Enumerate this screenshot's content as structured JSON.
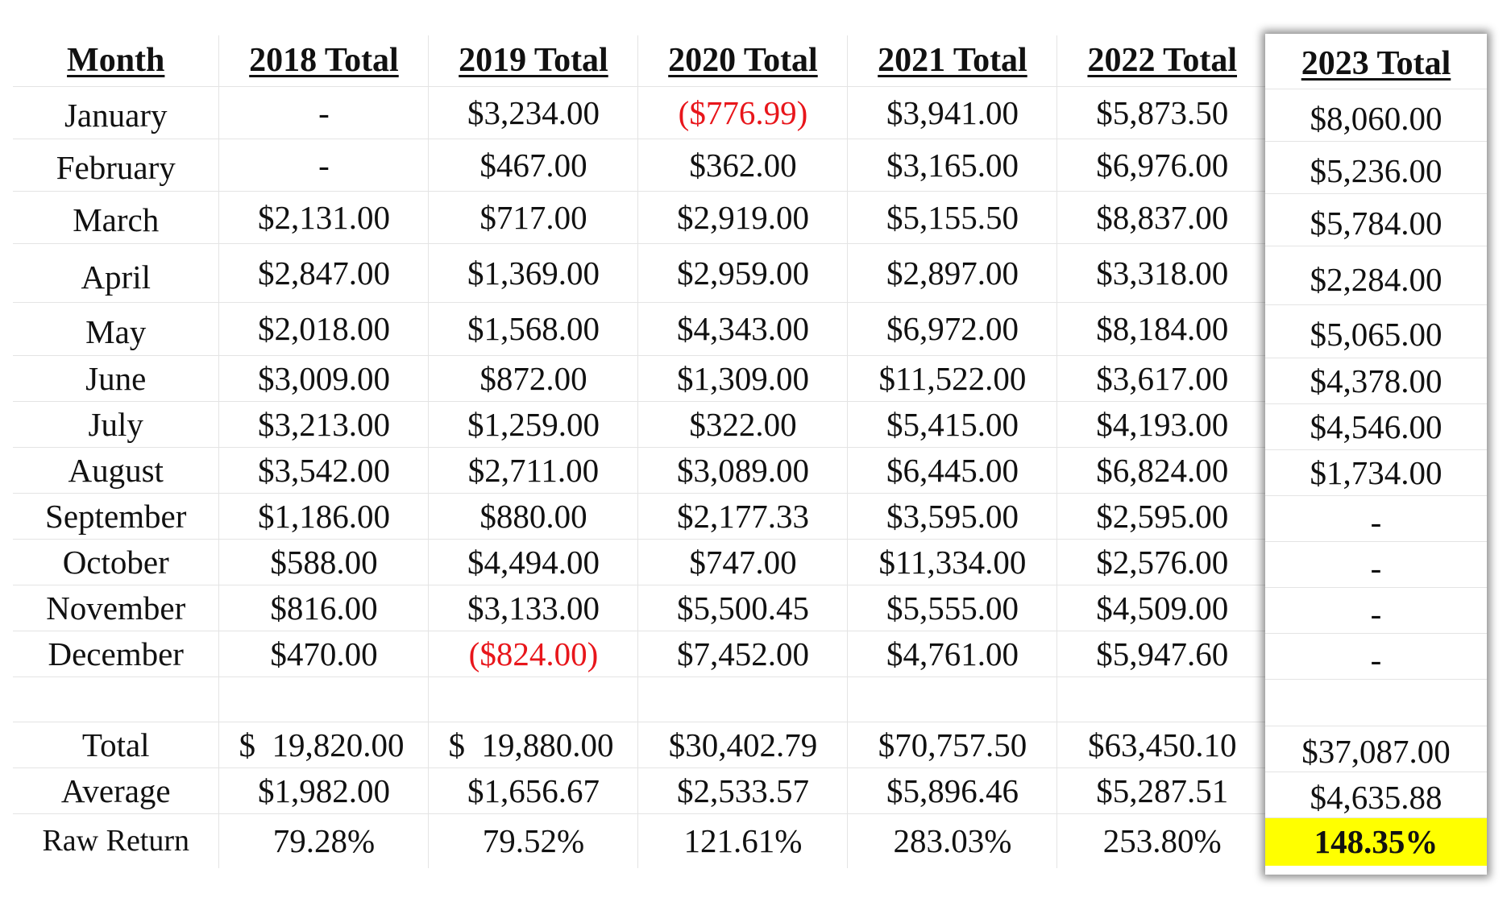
{
  "headers": {
    "month": "Month",
    "years": [
      "2018 Total",
      "2019 Total",
      "2020 Total",
      "2021 Total",
      "2022 Total"
    ],
    "highlight_year": "2023 Total"
  },
  "months": [
    {
      "name": "January",
      "values": [
        "-",
        "$3,234.00",
        "($776.99)",
        "$3,941.00",
        "$5,873.50"
      ],
      "y2023": "$8,060.00"
    },
    {
      "name": "February",
      "values": [
        "-",
        "$467.00",
        "$362.00",
        "$3,165.00",
        "$6,976.00"
      ],
      "y2023": "$5,236.00"
    },
    {
      "name": "March",
      "values": [
        "$2,131.00",
        "$717.00",
        "$2,919.00",
        "$5,155.50",
        "$8,837.00"
      ],
      "y2023": "$5,784.00"
    },
    {
      "name": "April",
      "values": [
        "$2,847.00",
        "$1,369.00",
        "$2,959.00",
        "$2,897.00",
        "$3,318.00"
      ],
      "y2023": "$2,284.00"
    },
    {
      "name": "May",
      "values": [
        "$2,018.00",
        "$1,568.00",
        "$4,343.00",
        "$6,972.00",
        "$8,184.00"
      ],
      "y2023": "$5,065.00"
    },
    {
      "name": "June",
      "values": [
        "$3,009.00",
        "$872.00",
        "$1,309.00",
        "$11,522.00",
        "$3,617.00"
      ],
      "y2023": "$4,378.00"
    },
    {
      "name": "July",
      "values": [
        "$3,213.00",
        "$1,259.00",
        "$322.00",
        "$5,415.00",
        "$4,193.00"
      ],
      "y2023": "$4,546.00"
    },
    {
      "name": "August",
      "values": [
        "$3,542.00",
        "$2,711.00",
        "$3,089.00",
        "$6,445.00",
        "$6,824.00"
      ],
      "y2023": "$1,734.00"
    },
    {
      "name": "September",
      "values": [
        "$1,186.00",
        "$880.00",
        "$2,177.33",
        "$3,595.00",
        "$2,595.00"
      ],
      "y2023": "-"
    },
    {
      "name": "October",
      "values": [
        "$588.00",
        "$4,494.00",
        "$747.00",
        "$11,334.00",
        "$2,576.00"
      ],
      "y2023": "-"
    },
    {
      "name": "November",
      "values": [
        "$816.00",
        "$3,133.00",
        "$5,500.45",
        "$5,555.00",
        "$4,509.00"
      ],
      "y2023": "-"
    },
    {
      "name": "December",
      "values": [
        "$470.00",
        "($824.00)",
        "$7,452.00",
        "$4,761.00",
        "$5,947.60"
      ],
      "y2023": "-"
    }
  ],
  "summary": {
    "total_label": "Total",
    "total_values": [
      "$",
      "19,820.00",
      "$",
      "19,880.00",
      "$30,402.79",
      "$70,757.50",
      "$63,450.10"
    ],
    "total_2023": "$37,087.00",
    "average_label": "Average",
    "average_values": [
      "$1,982.00",
      "$1,656.67",
      "$2,533.57",
      "$5,896.46",
      "$5,287.51"
    ],
    "average_2023": "$4,635.88",
    "raw_return_label": "Raw Return",
    "raw_return_values": [
      "79.28%",
      "79.52%",
      "121.61%",
      "283.03%",
      "253.80%"
    ],
    "raw_return_2023": "148.35%"
  },
  "colors": {
    "negative": "#e8161b",
    "highlight": "#ffff00"
  }
}
